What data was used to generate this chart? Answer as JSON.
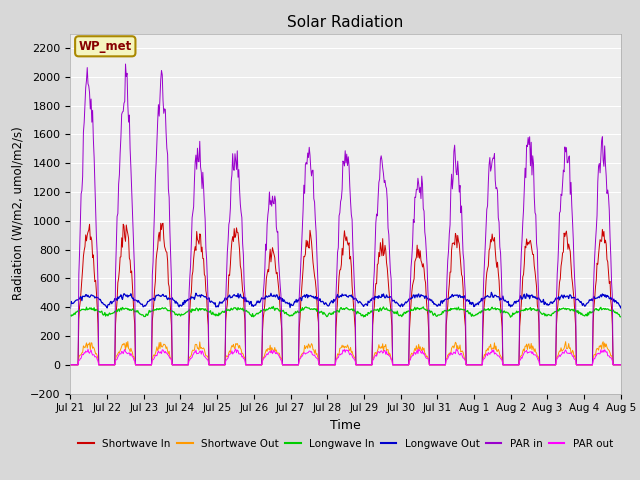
{
  "title": "Solar Radiation",
  "xlabel": "Time",
  "ylabel": "Radiation (W/m2, umol/m2/s)",
  "ylim": [
    -200,
    2300
  ],
  "yticks": [
    -200,
    0,
    200,
    400,
    600,
    800,
    1000,
    1200,
    1400,
    1600,
    1800,
    2000,
    2200
  ],
  "annotation_text": "WP_met",
  "background_color": "#d8d8d8",
  "plot_bg_color": "#eeeeee",
  "legend": [
    {
      "label": "Shortwave In",
      "color": "#cc0000"
    },
    {
      "label": "Shortwave Out",
      "color": "#ff9900"
    },
    {
      "label": "Longwave In",
      "color": "#00cc00"
    },
    {
      "label": "Longwave Out",
      "color": "#0000cc"
    },
    {
      "label": "PAR in",
      "color": "#9900cc"
    },
    {
      "label": "PAR out",
      "color": "#ff00ff"
    }
  ],
  "x_tick_labels": [
    "Jul 21",
    "Jul 22",
    "Jul 23",
    "Jul 24",
    "Jul 25",
    "Jul 26",
    "Jul 27",
    "Jul 28",
    "Jul 29",
    "Jul 30",
    "Jul 31",
    "Aug 1",
    "Aug 2",
    "Aug 3",
    "Aug 4",
    "Aug 5"
  ],
  "num_days": 16,
  "points_per_day": 48,
  "sw_in_peaks": [
    1020,
    1010,
    1010,
    980,
    1000,
    830,
    950,
    950,
    890,
    870,
    940,
    930,
    980,
    960,
    1000,
    0
  ],
  "par_in_peaks": [
    2100,
    2100,
    2050,
    1600,
    1600,
    1280,
    1610,
    1580,
    1510,
    1400,
    1560,
    1590,
    1640,
    1620,
    1640,
    0
  ],
  "lw_in_base": 340,
  "lw_in_amplitude": 50,
  "lw_out_base": 410,
  "lw_out_amplitude": 70,
  "par_out_peak": 110
}
